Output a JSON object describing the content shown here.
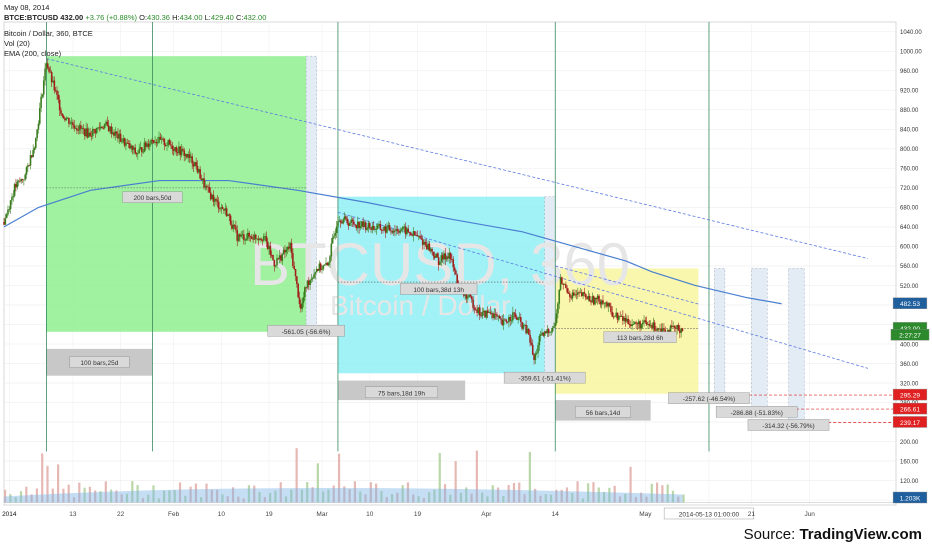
{
  "header": {
    "date": "May 08, 2014",
    "symbol": "BTCE:BTCUSD",
    "last": "432.00",
    "change": "+3.76 (+0.88%)",
    "open_label": "O:",
    "open": "430.36",
    "high_label": "H:",
    "high": "434.00",
    "low_label": "L:",
    "low": "429.40",
    "close_label": "C:",
    "close": "432.00",
    "series_title": "Bitcoin / Dollar, 360, BTCE",
    "volume_label": "Vol (20)",
    "ema_label": "EMA (200, close)"
  },
  "watermark": {
    "main": "BTCUSD, 360",
    "sub": "Bitcoin / Dollar"
  },
  "source": {
    "prefix": "Source: ",
    "brand": "TradingView.com"
  },
  "colors": {
    "up": "#3a7d1e",
    "down": "#a0201c",
    "ema": "#4a7fd0",
    "trend": "#5b7be0",
    "green_box": "#8fef8f",
    "cyan_box": "#8ff0f4",
    "yellow_box": "#f8f6a0",
    "price_badge": "#1f5f9e",
    "neg_badge": "#e02020"
  },
  "chart_data": {
    "type": "candlestick",
    "symbol": "BTCE:BTCUSD",
    "interval": "360",
    "y_axis": {
      "range": [
        70,
        1060
      ],
      "ticks": [
        80,
        120,
        160,
        200,
        240,
        280,
        320,
        360,
        400,
        440,
        480,
        520,
        560,
        600,
        640,
        680,
        720,
        760,
        800,
        840,
        880,
        920,
        960,
        1000,
        1040
      ]
    },
    "x_axis": {
      "ticks": [
        "2014",
        "13",
        "22",
        "Feb",
        "10",
        "19",
        "Mar",
        "10",
        "19",
        "Apr",
        "14",
        "May",
        "2014-05-13 01:00:00",
        "21",
        "Jun"
      ]
    },
    "price_path": [
      [
        "2013-12-31",
        650
      ],
      [
        "2014-01-02",
        720
      ],
      [
        "2014-01-04",
        745
      ],
      [
        "2014-01-06",
        820
      ],
      [
        "2014-01-08",
        980
      ],
      [
        "2014-01-09",
        940
      ],
      [
        "2014-01-11",
        870
      ],
      [
        "2014-01-13",
        850
      ],
      [
        "2014-01-16",
        830
      ],
      [
        "2014-01-19",
        850
      ],
      [
        "2014-01-22",
        820
      ],
      [
        "2014-01-25",
        790
      ],
      [
        "2014-01-28",
        820
      ],
      [
        "2014-01-31",
        810
      ],
      [
        "2014-02-03",
        790
      ],
      [
        "2014-02-05",
        770
      ],
      [
        "2014-02-07",
        720
      ],
      [
        "2014-02-09",
        690
      ],
      [
        "2014-02-11",
        670
      ],
      [
        "2014-02-13",
        620
      ],
      [
        "2014-02-15",
        620
      ],
      [
        "2014-02-18",
        620
      ],
      [
        "2014-02-20",
        565
      ],
      [
        "2014-02-23",
        600
      ],
      [
        "2014-02-25",
        470
      ],
      [
        "2014-02-26",
        520
      ],
      [
        "2014-02-28",
        555
      ],
      [
        "2014-03-02",
        560
      ],
      [
        "2014-03-04",
        660
      ],
      [
        "2014-03-06",
        650
      ],
      [
        "2014-03-10",
        640
      ],
      [
        "2014-03-13",
        635
      ],
      [
        "2014-03-16",
        635
      ],
      [
        "2014-03-19",
        620
      ],
      [
        "2014-03-21",
        600
      ],
      [
        "2014-03-23",
        570
      ],
      [
        "2014-03-25",
        585
      ],
      [
        "2014-03-27",
        510
      ],
      [
        "2014-03-29",
        490
      ],
      [
        "2014-03-31",
        460
      ],
      [
        "2014-04-02",
        465
      ],
      [
        "2014-04-04",
        440
      ],
      [
        "2014-04-06",
        460
      ],
      [
        "2014-04-07",
        450
      ],
      [
        "2014-04-09",
        420
      ],
      [
        "2014-04-10",
        365
      ],
      [
        "2014-04-11",
        410
      ],
      [
        "2014-04-12",
        420
      ],
      [
        "2014-04-13",
        430
      ],
      [
        "2014-04-14",
        440
      ],
      [
        "2014-04-15",
        530
      ],
      [
        "2014-04-17",
        500
      ],
      [
        "2014-04-19",
        500
      ],
      [
        "2014-04-21",
        490
      ],
      [
        "2014-04-23",
        490
      ],
      [
        "2014-04-25",
        460
      ],
      [
        "2014-04-27",
        450
      ],
      [
        "2014-04-29",
        440
      ],
      [
        "2014-05-01",
        440
      ],
      [
        "2014-05-03",
        435
      ],
      [
        "2014-05-05",
        428
      ],
      [
        "2014-05-08",
        432
      ]
    ],
    "ema_200": [
      [
        0,
        640
      ],
      [
        0.04,
        680
      ],
      [
        0.1,
        715
      ],
      [
        0.18,
        735
      ],
      [
        0.26,
        735
      ],
      [
        0.34,
        715
      ],
      [
        0.42,
        690
      ],
      [
        0.52,
        655
      ],
      [
        0.6,
        630
      ],
      [
        0.66,
        600
      ],
      [
        0.72,
        570
      ],
      [
        0.75,
        548
      ],
      [
        0.8,
        520
      ],
      [
        0.86,
        495
      ],
      [
        0.9,
        482.53
      ]
    ],
    "trendlines": [
      {
        "from": [
          "2014-01-08",
          985
        ],
        "to": [
          "2014-06-12",
          575
        ]
      },
      {
        "from": [
          "2014-03-04",
          670
        ],
        "to": [
          "2014-06-12",
          350
        ]
      },
      {
        "from": [
          "2014-04-14",
          560
        ],
        "to": [
          "2014-05-11",
          482
        ]
      }
    ],
    "annotations": [
      {
        "label": "200 bars,50d",
        "change": "-561.05 (-56.6%)",
        "box": "green"
      },
      {
        "label": "100 bars,25d"
      },
      {
        "label": "100 bars,38d 13h",
        "change": "-359.61 (-51.41%)",
        "box": "cyan"
      },
      {
        "label": "75 bars,18d 19h"
      },
      {
        "label": "113 bars,28d 6h",
        "box": "yellow"
      },
      {
        "label": "56 bars,14d"
      },
      {
        "change": "-257.62 (-46.54%)",
        "target": 295.29
      },
      {
        "change": "-286.88 (-51.83%)",
        "target": 266.61
      },
      {
        "change": "-314.32 (-56.79%)",
        "target": 239.17
      }
    ],
    "price_labels": [
      {
        "value": "482.53",
        "kind": "ema"
      },
      {
        "value": "432.00",
        "kind": "last"
      },
      {
        "value": "2:27:27",
        "kind": "countdown"
      },
      {
        "value": "295.29",
        "kind": "target"
      },
      {
        "value": "266.61",
        "kind": "target"
      },
      {
        "value": "239.17",
        "kind": "target"
      },
      {
        "value": "1.203K",
        "kind": "volume"
      }
    ]
  }
}
